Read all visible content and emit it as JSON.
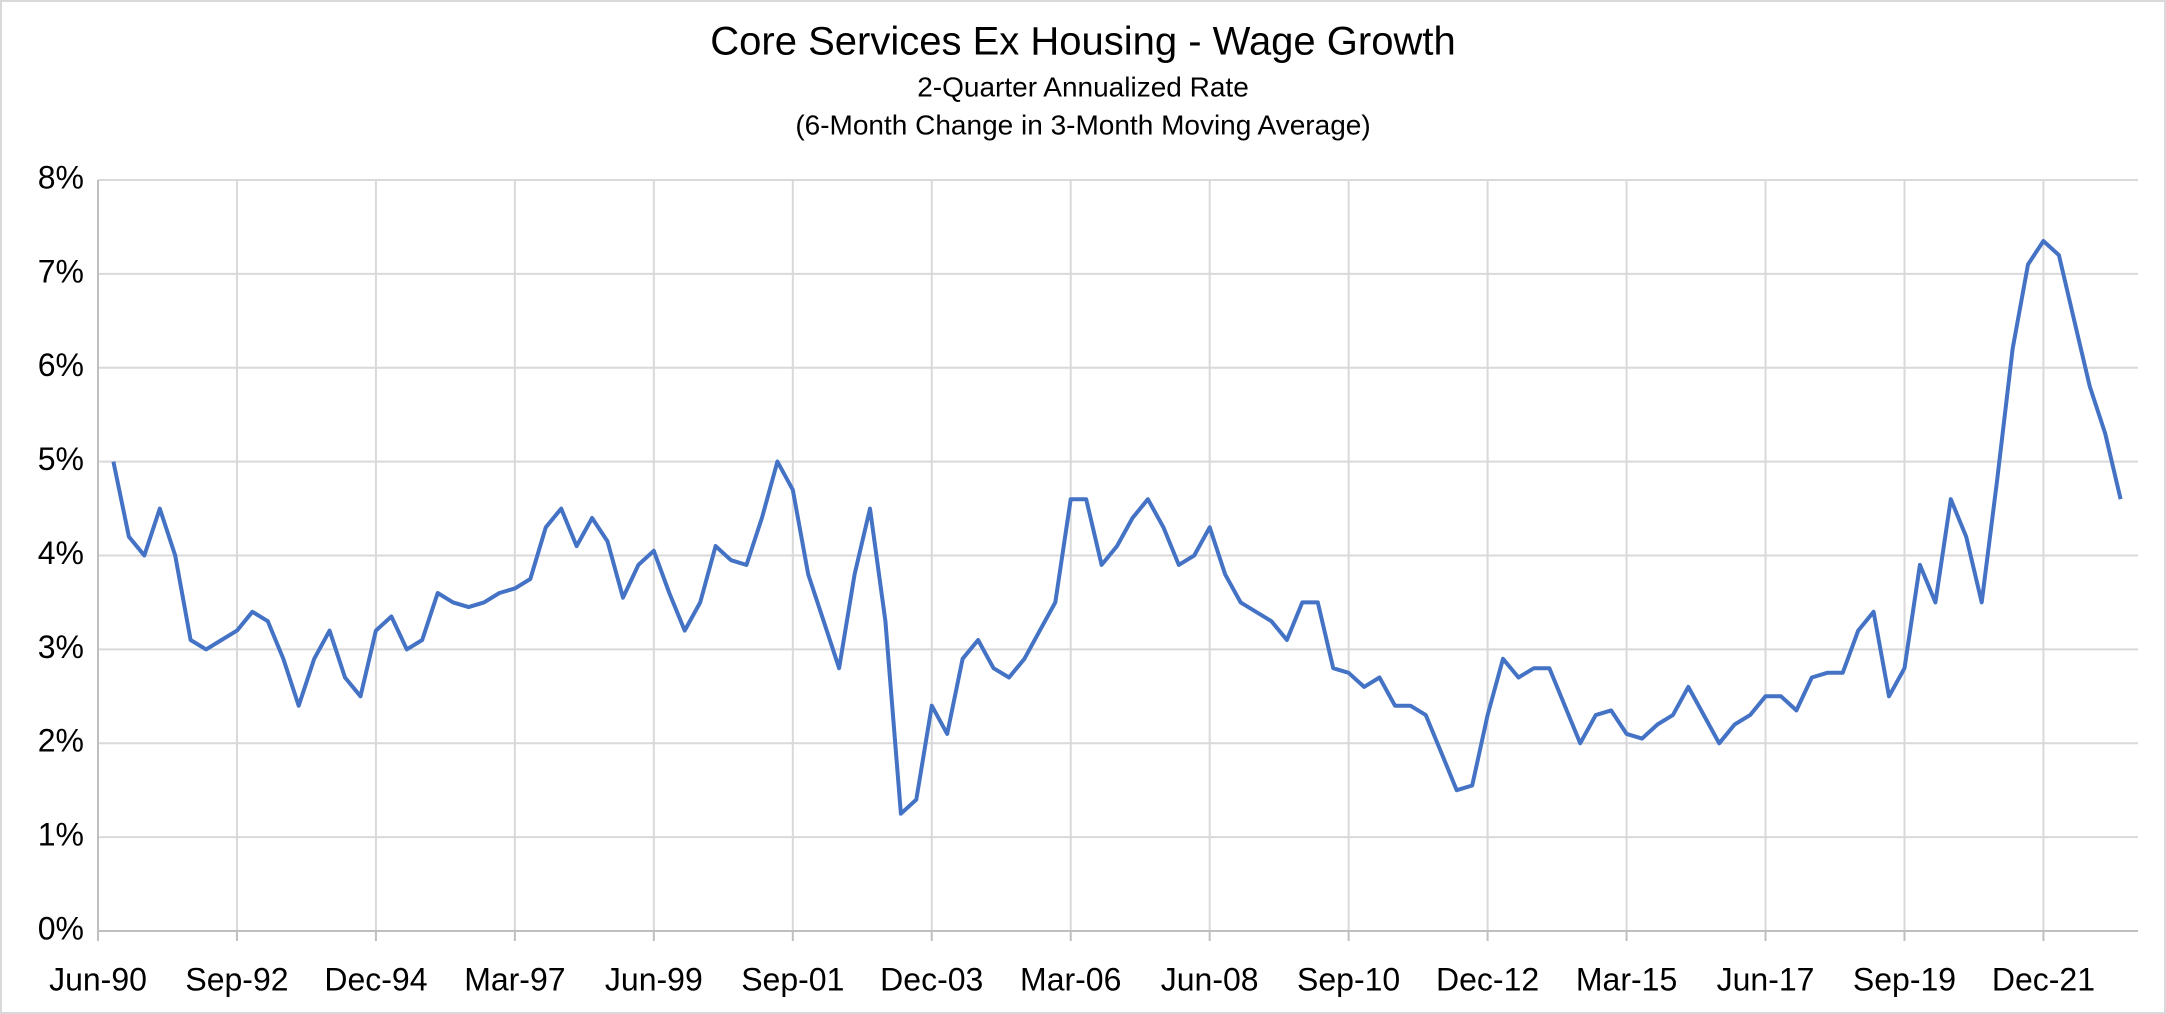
{
  "chart_data": {
    "type": "line",
    "title": "Core Services Ex Housing - Wage Growth",
    "subtitle": [
      "2-Quarter Annualized Rate",
      "(6-Month Change in 3-Month Moving Average)"
    ],
    "categories": [
      "Jun-90",
      null,
      null,
      null,
      null,
      null,
      null,
      null,
      null,
      "Sep-92",
      null,
      null,
      null,
      null,
      null,
      null,
      null,
      null,
      "Dec-94",
      null,
      null,
      null,
      null,
      null,
      null,
      null,
      null,
      "Mar-97",
      null,
      null,
      null,
      null,
      null,
      null,
      null,
      null,
      "Jun-99",
      null,
      null,
      null,
      null,
      null,
      null,
      null,
      null,
      "Sep-01",
      null,
      null,
      null,
      null,
      null,
      null,
      null,
      null,
      "Dec-03",
      null,
      null,
      null,
      null,
      null,
      null,
      null,
      null,
      "Mar-06",
      null,
      null,
      null,
      null,
      null,
      null,
      null,
      null,
      "Jun-08",
      null,
      null,
      null,
      null,
      null,
      null,
      null,
      null,
      "Sep-10",
      null,
      null,
      null,
      null,
      null,
      null,
      null,
      null,
      "Dec-12",
      null,
      null,
      null,
      null,
      null,
      null,
      null,
      null,
      "Mar-15",
      null,
      null,
      null,
      null,
      null,
      null,
      null,
      null,
      "Jun-17",
      null,
      null,
      null,
      null,
      null,
      null,
      null,
      null,
      "Sep-19",
      null,
      null,
      null,
      null,
      null,
      null,
      null,
      null,
      "Dec-21",
      null,
      null,
      null,
      null,
      null
    ],
    "values": [
      null,
      5.0,
      4.2,
      4.0,
      4.5,
      4.0,
      3.1,
      3.0,
      3.1,
      3.2,
      3.4,
      3.3,
      2.9,
      2.4,
      2.9,
      3.2,
      2.7,
      2.5,
      3.2,
      3.35,
      3.0,
      3.1,
      3.6,
      3.5,
      3.45,
      3.5,
      3.6,
      3.65,
      3.75,
      4.3,
      4.5,
      4.1,
      4.4,
      4.15,
      3.55,
      3.9,
      4.05,
      3.6,
      3.2,
      3.5,
      4.1,
      3.95,
      3.9,
      4.4,
      5.0,
      4.7,
      3.8,
      3.3,
      2.8,
      3.8,
      4.5,
      3.3,
      1.25,
      1.4,
      2.4,
      2.1,
      2.9,
      3.1,
      2.8,
      2.7,
      2.9,
      3.2,
      3.5,
      4.6,
      4.6,
      3.9,
      4.1,
      4.4,
      4.6,
      4.3,
      3.9,
      4.0,
      4.3,
      3.8,
      3.5,
      3.4,
      3.3,
      3.1,
      3.5,
      3.5,
      2.8,
      2.75,
      2.6,
      2.7,
      2.4,
      2.4,
      2.3,
      1.9,
      1.5,
      1.55,
      2.3,
      2.9,
      2.7,
      2.8,
      2.8,
      2.4,
      2.0,
      2.3,
      2.35,
      2.1,
      2.05,
      2.2,
      2.3,
      2.6,
      2.3,
      2.0,
      2.2,
      2.3,
      2.5,
      2.5,
      2.35,
      2.7,
      2.75,
      2.75,
      3.2,
      3.4,
      2.5,
      2.8,
      3.9,
      3.5,
      4.6,
      4.2,
      3.5,
      4.8,
      6.2,
      7.1,
      7.35,
      7.2,
      6.5,
      5.8,
      5.3,
      4.6
    ],
    "color": "#4472c4",
    "ylim": [
      0,
      8
    ],
    "yticks": [
      {
        "value": 0,
        "label": "0%"
      },
      {
        "value": 1,
        "label": "1%"
      },
      {
        "value": 2,
        "label": "2%"
      },
      {
        "value": 3,
        "label": "3%"
      },
      {
        "value": 4,
        "label": "4%"
      },
      {
        "value": 5,
        "label": "5%"
      },
      {
        "value": 6,
        "label": "6%"
      },
      {
        "value": 7,
        "label": "7%"
      },
      {
        "value": 8,
        "label": "8%"
      }
    ],
    "grid": true
  }
}
